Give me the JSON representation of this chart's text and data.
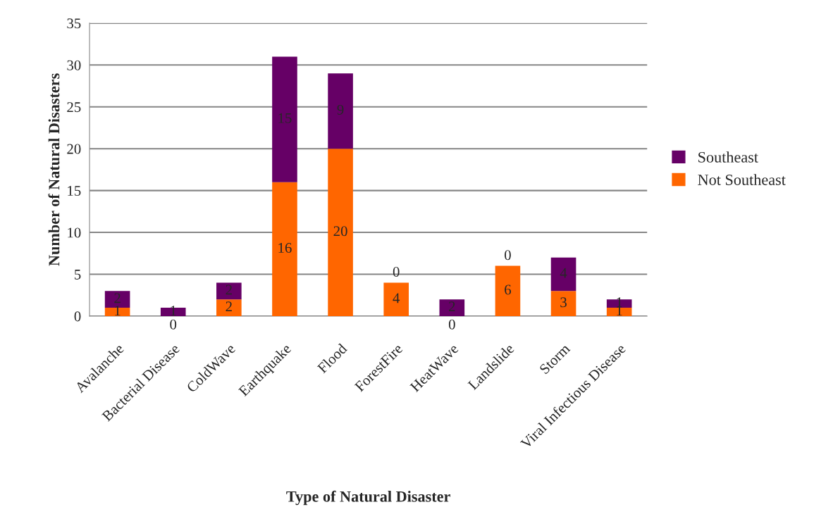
{
  "chart_data": {
    "type": "bar",
    "stacked": true,
    "xlabel": "Type of Natural Disaster",
    "ylabel": "Number of Natural Disasters",
    "categories": [
      "Avalanche",
      "Bacterial Disease",
      "ColdWave",
      "Earthquake",
      "Flood",
      "ForestFire",
      "HeatWave",
      "Landslide",
      "Storm",
      "Viral Infectious Disease"
    ],
    "series": [
      {
        "name": "Not Southeast",
        "color": "#ff6600",
        "values": [
          1,
          0,
          2,
          16,
          20,
          4,
          0,
          6,
          3,
          1
        ]
      },
      {
        "name": "Southeast",
        "color": "#660066",
        "values": [
          2,
          1,
          2,
          15,
          9,
          0,
          2,
          0,
          4,
          1
        ]
      }
    ],
    "ylim": [
      0,
      35
    ],
    "yticks": [
      0,
      5,
      10,
      15,
      20,
      25,
      30,
      35
    ],
    "grid": "y",
    "legend": "right",
    "data_labels": true
  }
}
